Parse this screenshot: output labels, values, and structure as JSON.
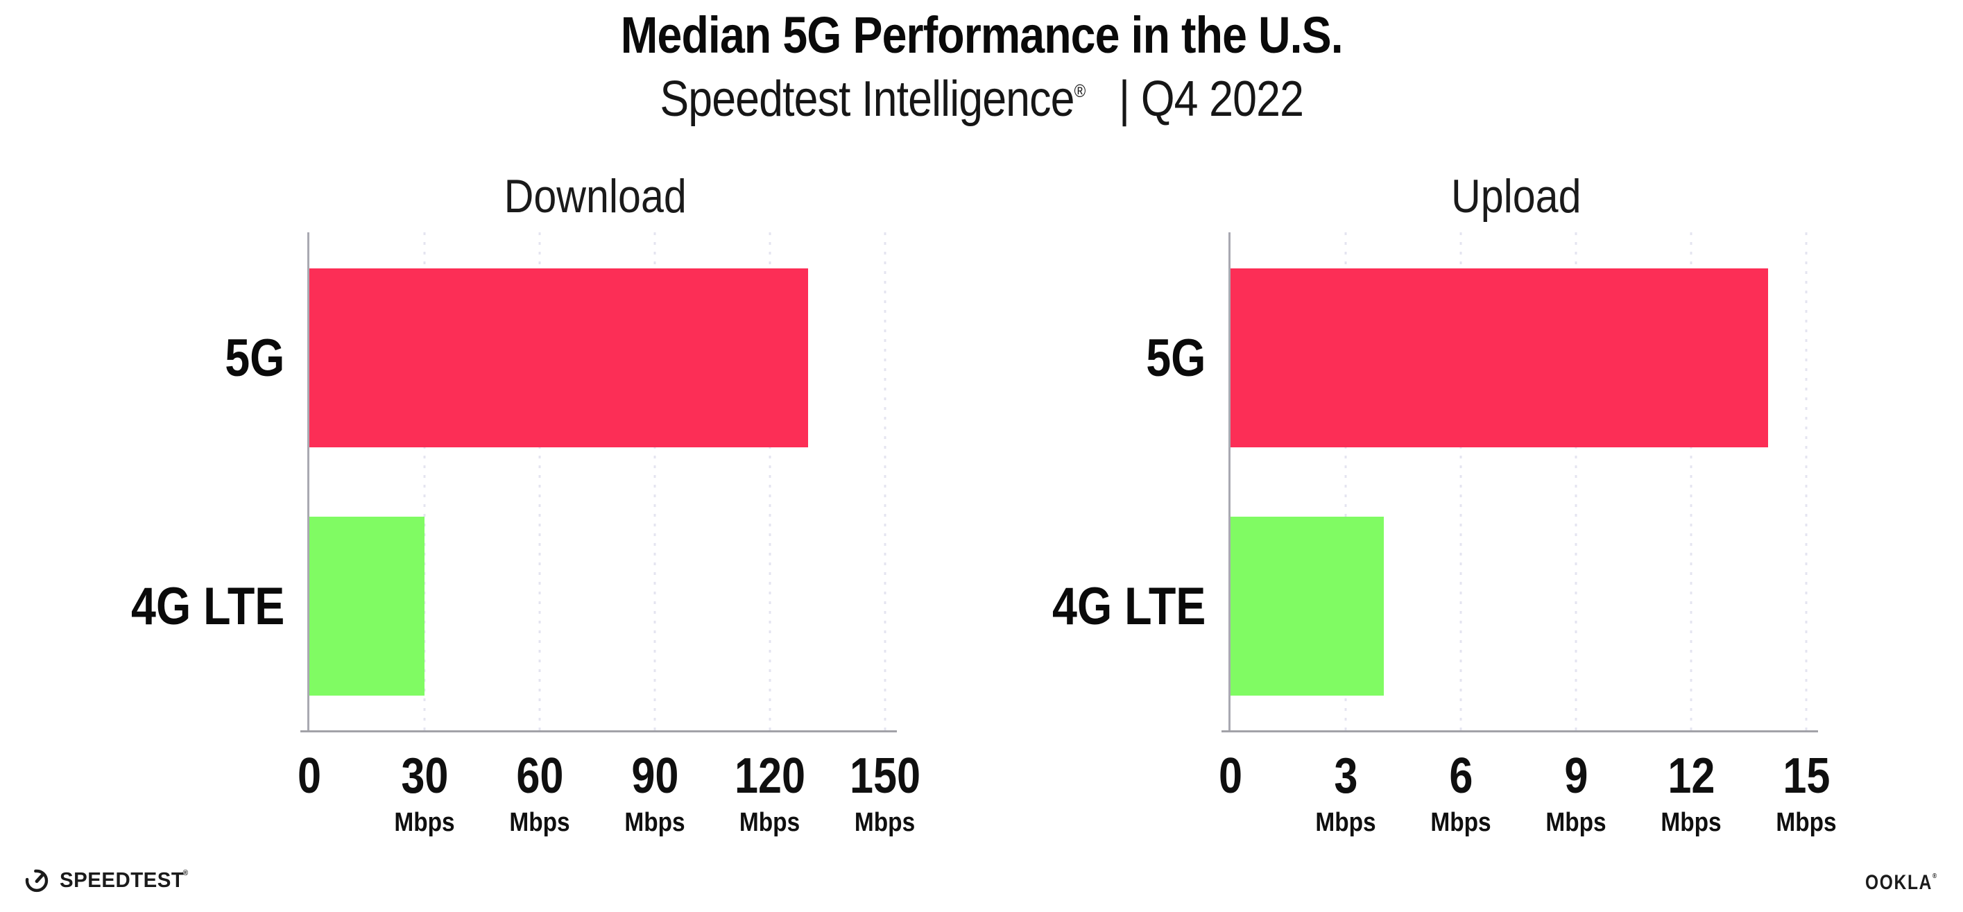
{
  "header": {
    "title": "Median 5G Performance in the U.S.",
    "subtitle_brand": "Speedtest Intelligence",
    "subtitle_reg_mark": "®",
    "subtitle_rest": "| Q4 2022"
  },
  "colors": {
    "bar_5g": "#FC2E56",
    "bar_4g_lte": "#80FB63",
    "gridline": "#E4E4F0",
    "axis_spine": "#A9A9B2",
    "axis_baseline": "#A2A2A8",
    "text": "#141414"
  },
  "chart_data": [
    {
      "type": "bar",
      "orientation": "horizontal",
      "title": "Download",
      "categories": [
        "5G",
        "4G LTE"
      ],
      "values": [
        130,
        30
      ],
      "unit": "Mbps",
      "xlim": [
        0,
        150
      ],
      "xticks": [
        0,
        30,
        60,
        90,
        120,
        150
      ],
      "xtick_unit_label": "Mbps",
      "bar_colors": [
        "#FC2E56",
        "#80FB63"
      ],
      "grid": "vertical-dotted",
      "legend": "none"
    },
    {
      "type": "bar",
      "orientation": "horizontal",
      "title": "Upload",
      "categories": [
        "5G",
        "4G LTE"
      ],
      "values": [
        14,
        4
      ],
      "unit": "Mbps",
      "xlim": [
        0,
        15
      ],
      "xticks": [
        0,
        3,
        6,
        9,
        12,
        15
      ],
      "xtick_unit_label": "Mbps",
      "bar_colors": [
        "#FC2E56",
        "#80FB63"
      ],
      "grid": "vertical-dotted",
      "legend": "none"
    }
  ],
  "footer": {
    "speedtest_logo_text": "SPEEDTEST",
    "speedtest_trademark": "®",
    "ookla_logo_text": "OOKLA",
    "ookla_trademark": "®"
  }
}
